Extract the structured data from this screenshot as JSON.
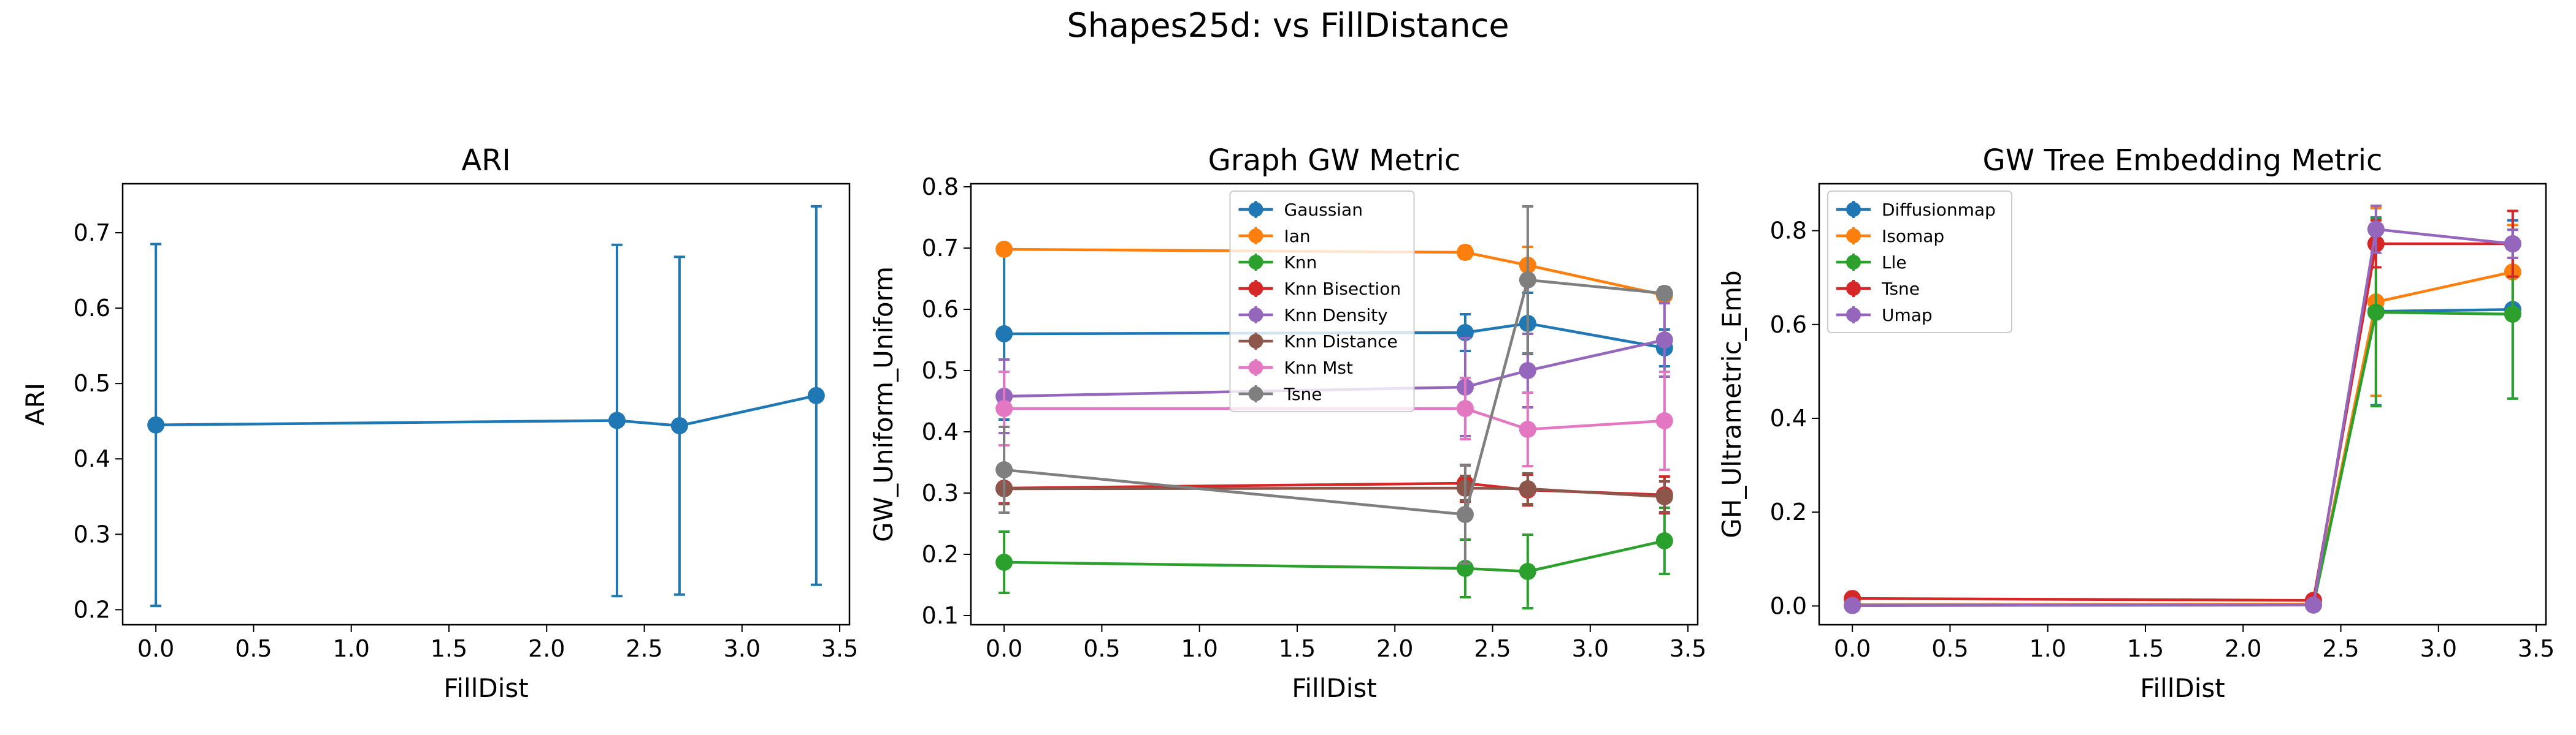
{
  "figure": {
    "suptitle": "Shapes25d: vs FillDistance"
  },
  "chart_data": [
    {
      "type": "line",
      "title": "ARI",
      "xlabel": "FillDist",
      "ylabel": "ARI",
      "xlim": [
        -0.17,
        3.55
      ],
      "ylim": [
        0.18,
        0.765
      ],
      "xticks": [
        0.0,
        0.5,
        1.0,
        1.5,
        2.0,
        2.5,
        3.0,
        3.5
      ],
      "yticks": [
        0.2,
        0.3,
        0.4,
        0.5,
        0.6,
        0.7
      ],
      "grid": false,
      "legend": null,
      "series": [
        {
          "name": "",
          "color": "#1f77b4",
          "x": [
            0.0,
            2.36,
            2.68,
            3.38
          ],
          "y": [
            0.445,
            0.451,
            0.444,
            0.484
          ],
          "err": [
            0.24,
            0.233,
            0.224,
            0.251
          ]
        }
      ]
    },
    {
      "type": "line",
      "title": "Graph GW Metric",
      "xlabel": "FillDist",
      "ylabel": "GW_Uniform_Uniform",
      "xlim": [
        -0.17,
        3.55
      ],
      "ylim": [
        0.085,
        0.805
      ],
      "xticks": [
        0.0,
        0.5,
        1.0,
        1.5,
        2.0,
        2.5,
        3.0,
        3.5
      ],
      "yticks": [
        0.1,
        0.2,
        0.3,
        0.4,
        0.5,
        0.6,
        0.7,
        0.8
      ],
      "grid": false,
      "legend": "upper center",
      "series": [
        {
          "name": "Gaussian",
          "color": "#1f77b4",
          "x": [
            0.0,
            2.36,
            2.68,
            3.38
          ],
          "y": [
            0.56,
            0.562,
            0.577,
            0.537
          ],
          "err": [
            0.14,
            0.03,
            0.05,
            0.03
          ]
        },
        {
          "name": "Ian",
          "color": "#ff7f0e",
          "x": [
            0.0,
            2.36,
            2.68,
            3.38
          ],
          "y": [
            0.698,
            0.693,
            0.672,
            0.623
          ],
          "err": [
            0.006,
            0.01,
            0.03,
            0.01
          ]
        },
        {
          "name": "Knn",
          "color": "#2ca02c",
          "x": [
            0.0,
            2.36,
            2.68,
            3.38
          ],
          "y": [
            0.187,
            0.177,
            0.172,
            0.222
          ],
          "err": [
            0.05,
            0.047,
            0.06,
            0.054
          ]
        },
        {
          "name": "Knn Bisection",
          "color": "#d62728",
          "x": [
            0.0,
            2.36,
            2.68,
            3.38
          ],
          "y": [
            0.308,
            0.316,
            0.305,
            0.297
          ],
          "err": [
            0.025,
            0.03,
            0.025,
            0.03
          ]
        },
        {
          "name": "Knn Density",
          "color": "#9467bd",
          "x": [
            0.0,
            2.36,
            2.68,
            3.38
          ],
          "y": [
            0.458,
            0.473,
            0.5,
            0.55
          ],
          "err": [
            0.06,
            0.08,
            0.06,
            0.06
          ]
        },
        {
          "name": "Knn Distance",
          "color": "#8c564b",
          "x": [
            0.0,
            2.36,
            2.68,
            3.38
          ],
          "y": [
            0.307,
            0.308,
            0.307,
            0.294
          ],
          "err": [
            0.025,
            0.02,
            0.025,
            0.025
          ]
        },
        {
          "name": "Knn Mst",
          "color": "#e377c2",
          "x": [
            0.0,
            2.36,
            2.68,
            3.38
          ],
          "y": [
            0.438,
            0.438,
            0.404,
            0.418
          ],
          "err": [
            0.06,
            0.05,
            0.06,
            0.08
          ]
        },
        {
          "name": "Tsne",
          "color": "#7f7f7f",
          "x": [
            0.0,
            2.36,
            2.68,
            3.38
          ],
          "y": [
            0.338,
            0.265,
            0.648,
            0.626
          ],
          "err": [
            0.07,
            0.08,
            0.12,
            0.01
          ]
        }
      ]
    },
    {
      "type": "line",
      "title": "GW Tree Embedding Metric",
      "xlabel": "FillDist",
      "ylabel": "GH_Ultrametric_Emb",
      "xlim": [
        -0.17,
        3.55
      ],
      "ylim": [
        -0.04,
        0.9
      ],
      "xticks": [
        0.0,
        0.5,
        1.0,
        1.5,
        2.0,
        2.5,
        3.0,
        3.5
      ],
      "yticks": [
        0.0,
        0.2,
        0.4,
        0.6,
        0.8
      ],
      "grid": false,
      "legend": "upper left",
      "series": [
        {
          "name": "Diffusionmap",
          "color": "#1f77b4",
          "x": [
            0.0,
            2.36,
            2.68,
            3.38
          ],
          "y": [
            0.002,
            0.003,
            0.628,
            0.632
          ],
          "err": [
            0.002,
            0.002,
            0.2,
            0.19
          ]
        },
        {
          "name": "Isomap",
          "color": "#ff7f0e",
          "x": [
            0.0,
            2.36,
            2.68,
            3.38
          ],
          "y": [
            0.003,
            0.004,
            0.648,
            0.712
          ],
          "err": [
            0.002,
            0.002,
            0.2,
            0.1
          ]
        },
        {
          "name": "Lle",
          "color": "#2ca02c",
          "x": [
            0.0,
            2.36,
            2.68,
            3.38
          ],
          "y": [
            0.001,
            0.002,
            0.626,
            0.622
          ],
          "err": [
            0.002,
            0.002,
            0.2,
            0.18
          ]
        },
        {
          "name": "Tsne",
          "color": "#d62728",
          "x": [
            0.0,
            2.36,
            2.68,
            3.38
          ],
          "y": [
            0.016,
            0.012,
            0.772,
            0.772
          ],
          "err": [
            0.003,
            0.003,
            0.05,
            0.07
          ]
        },
        {
          "name": "Umap",
          "color": "#9467bd",
          "x": [
            0.0,
            2.36,
            2.68,
            3.38
          ],
          "y": [
            0.001,
            0.002,
            0.803,
            0.772
          ],
          "err": [
            0.002,
            0.002,
            0.05,
            0.03
          ]
        }
      ]
    }
  ]
}
